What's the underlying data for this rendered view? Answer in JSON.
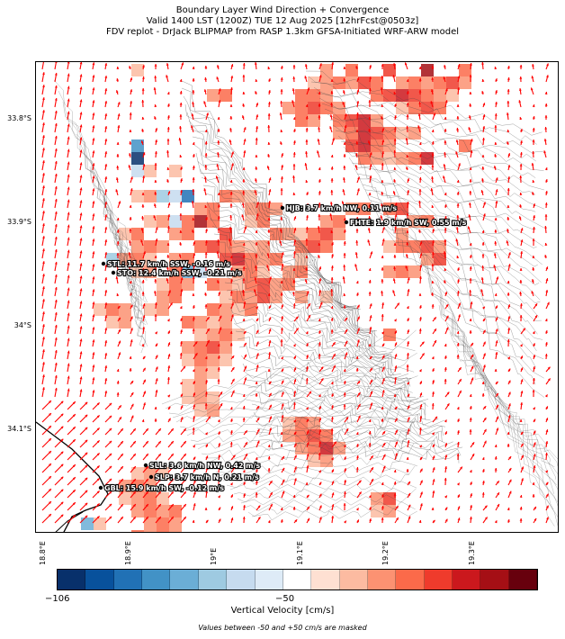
{
  "header": {
    "line1": "Boundary Layer Wind Direction + Convergence",
    "line2": "Valid 1400 LST (1200Z) TUE 12 Aug 2025 [12hrFcst@0503z]",
    "line3": "FDV replot - DrJack BLIPMAP from RASP 1.3km GFSA-Initiated WRF-ARW model"
  },
  "axes": {
    "y_ticks": [
      "33.8°S",
      "33.9°S",
      "34°S",
      "34.1°S"
    ],
    "x_ticks": [
      "18.8°E",
      "18.9°E",
      "19°E",
      "19.1°E",
      "19.2°E",
      "19.3°E"
    ]
  },
  "sites": [
    {
      "name": "HJB",
      "label": "HJB: 3.7 km/h NW, 0.11 m/s"
    },
    {
      "name": "FHTE",
      "label": "FHTE: 1.9 km/h SW, 0.55 m/s"
    },
    {
      "name": "STL",
      "label": "STL: 11.7 km/h SSW, -0.16 m/s"
    },
    {
      "name": "STO",
      "label": "STO: 12.4 km/h SSW, -0.21 m/s"
    },
    {
      "name": "SLL",
      "label": "SLL: 3.6 km/h NW, 0.42 m/s"
    },
    {
      "name": "SLP",
      "label": "SLP: 3.7 km/h N, 0.21 m/s"
    },
    {
      "name": "GBL",
      "label": "GBL: 15.9 km/h SW, -0.12 m/s"
    }
  ],
  "colorbar": {
    "label": "Vertical Velocity [cm/s]",
    "tick_left": "−106",
    "tick_mid": "−50",
    "colors": [
      "#08306b",
      "#08519c",
      "#2171b5",
      "#4292c6",
      "#6baed6",
      "#9ecae1",
      "#c6dbef",
      "#deebf7",
      "#ffffff",
      "#fee0d2",
      "#fcbba1",
      "#fc9272",
      "#fb6a4a",
      "#ef3b2c",
      "#cb181d",
      "#a50f15",
      "#67000d"
    ]
  },
  "footnote": "Values between -50 and +50 cm/s are masked",
  "colors": {
    "wind_arrow": "#ff0000",
    "contour": "#444444",
    "coast": "#000000"
  }
}
